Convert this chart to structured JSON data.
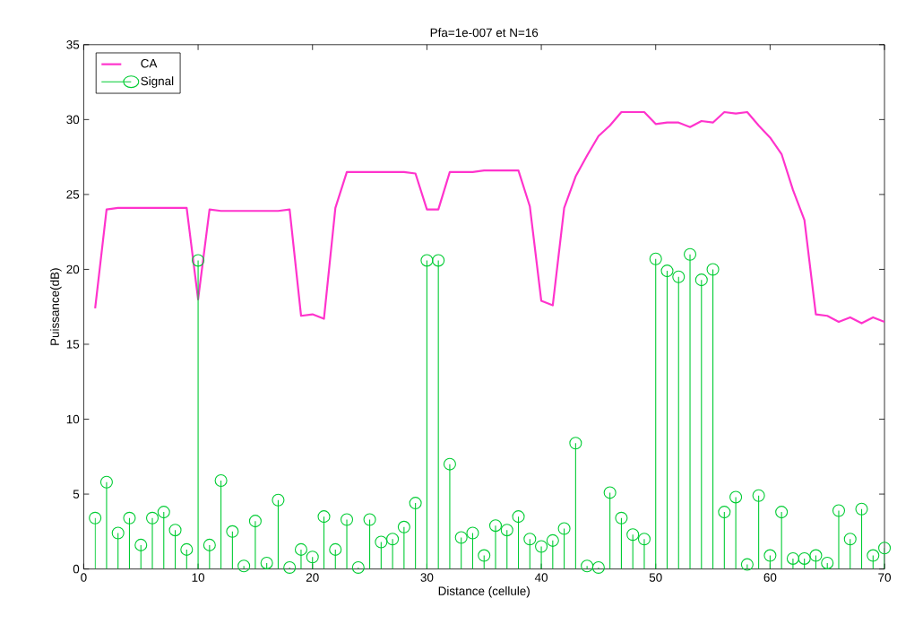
{
  "chart_data": {
    "type": "line",
    "title": "Pfa=1e-007 et N=16",
    "xlabel": "Distance (cellule)",
    "ylabel": "Puissance(dB)",
    "x": [
      1,
      2,
      3,
      4,
      5,
      6,
      7,
      8,
      9,
      10,
      11,
      12,
      13,
      14,
      15,
      16,
      17,
      18,
      19,
      20,
      21,
      22,
      23,
      24,
      25,
      26,
      27,
      28,
      29,
      30,
      31,
      32,
      33,
      34,
      35,
      36,
      37,
      38,
      39,
      40,
      41,
      42,
      43,
      44,
      45,
      46,
      47,
      48,
      49,
      50,
      51,
      52,
      53,
      54,
      55,
      56,
      57,
      58,
      59,
      60,
      61,
      62,
      63,
      64,
      65,
      66,
      67,
      68,
      69,
      70
    ],
    "series": [
      {
        "name": "CA",
        "type": "line",
        "color": "#ff33cc",
        "marker": "none",
        "values": [
          17.4,
          24.0,
          24.1,
          24.1,
          24.1,
          24.1,
          24.1,
          24.1,
          24.1,
          18.0,
          24.0,
          23.9,
          23.9,
          23.9,
          23.9,
          23.9,
          23.9,
          24.0,
          16.9,
          17.0,
          16.7,
          24.1,
          26.5,
          26.5,
          26.5,
          26.5,
          26.5,
          26.5,
          26.4,
          24.0,
          24.0,
          26.5,
          26.5,
          26.5,
          26.6,
          26.6,
          26.6,
          26.6,
          24.2,
          17.9,
          17.6,
          24.1,
          26.2,
          27.6,
          28.9,
          29.6,
          30.5,
          30.5,
          30.5,
          29.7,
          29.8,
          29.8,
          29.5,
          29.9,
          29.8,
          30.5,
          30.4,
          30.5,
          29.6,
          28.8,
          27.7,
          25.3,
          23.3,
          17.0,
          16.9,
          16.5,
          16.8,
          16.4,
          16.8,
          16.5
        ]
      },
      {
        "name": "Signal",
        "type": "lollipop",
        "color": "#00cc33",
        "marker": "circle",
        "values": [
          3.4,
          5.8,
          2.4,
          3.4,
          1.6,
          3.4,
          3.8,
          2.6,
          1.3,
          20.6,
          1.6,
          5.9,
          2.5,
          0.2,
          3.2,
          0.4,
          4.6,
          0.1,
          1.3,
          0.8,
          3.5,
          1.3,
          3.3,
          0.1,
          3.3,
          1.8,
          2.0,
          2.8,
          4.4,
          20.6,
          20.6,
          7.0,
          2.1,
          2.4,
          0.9,
          2.9,
          2.6,
          3.5,
          2.0,
          1.5,
          1.9,
          2.7,
          8.4,
          0.2,
          0.1,
          5.1,
          3.4,
          2.3,
          2.0,
          20.7,
          19.9,
          19.5,
          21.0,
          19.3,
          20.0,
          3.8,
          4.8,
          0.3,
          4.9,
          0.9,
          3.8,
          0.7,
          0.7,
          0.9,
          0.4,
          3.9,
          2.0,
          4.0,
          0.9,
          1.4
        ]
      }
    ],
    "xlim": [
      0,
      70
    ],
    "xticks": [
      0,
      10,
      20,
      30,
      40,
      50,
      60,
      70
    ],
    "ylim": [
      0,
      35
    ],
    "yticks": [
      0,
      5,
      10,
      15,
      20,
      25,
      30,
      35
    ],
    "grid": false,
    "legend": "top left"
  }
}
